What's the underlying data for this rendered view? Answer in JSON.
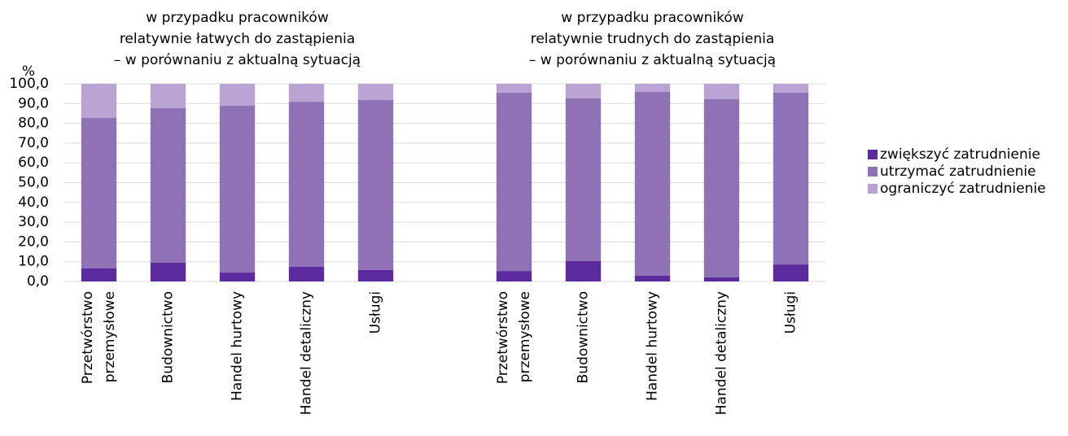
{
  "chart_data": {
    "type": "stacked_bar",
    "annotations": [
      [
        "w przypadku pracowników",
        "relatywnie łatwych do zastąpienia",
        "– w porównaniu z aktualną sytuacją"
      ],
      [
        "w przypadku pracowników",
        "relatywnie trudnych do zastąpienia",
        "– w porównaniu z aktualną sytuacją"
      ]
    ],
    "y_label": "%",
    "categories": [
      [
        "Przetwórstwo",
        "przemysłowe"
      ],
      [
        "Budownictwo"
      ],
      [
        "Handel hurtowy"
      ],
      [
        "Handel detaliczny"
      ],
      [
        "Usługi"
      ],
      null,
      [
        "Przetwórstwo",
        "przemysłowe"
      ],
      [
        "Budownictwo"
      ],
      [
        "Handel hurtowy"
      ],
      [
        "Handel detaliczny"
      ],
      [
        "Usługi"
      ]
    ],
    "series": [
      {
        "name": "zwiększyć zatrudnienie",
        "color": "#5b2a9e",
        "values": [
          6.6,
          9.5,
          4.5,
          7.4,
          5.8,
          null,
          5.3,
          10.3,
          2.9,
          2.1,
          8.6
        ]
      },
      {
        "name": "utrzymać zatrudnienie",
        "color": "#8e72b5",
        "values": [
          76.1,
          78.2,
          84.4,
          83.5,
          86.0,
          null,
          90.2,
          82.3,
          93.0,
          90.1,
          86.9
        ]
      },
      {
        "name": "ograniczyć zatrudnienie",
        "color": "#b9a3d3",
        "values": [
          17.3,
          12.3,
          11.1,
          9.1,
          8.2,
          null,
          4.5,
          7.4,
          4.1,
          7.8,
          4.5
        ]
      }
    ],
    "ylim": [
      0,
      100
    ],
    "yticks": [
      {
        "value": 0,
        "label": "0,0"
      },
      {
        "value": 10,
        "label": "10,0"
      },
      {
        "value": 20,
        "label": "20,0"
      },
      {
        "value": 30,
        "label": "30,0"
      },
      {
        "value": 40,
        "label": "40,0"
      },
      {
        "value": 50,
        "label": "50,0"
      },
      {
        "value": 60,
        "label": "60,0"
      },
      {
        "value": 70,
        "label": "70,0"
      },
      {
        "value": 80,
        "label": "80,0"
      },
      {
        "value": 90,
        "label": "90,0"
      },
      {
        "value": 100,
        "label": "100,0"
      }
    ],
    "grid": true,
    "legend": "right"
  }
}
